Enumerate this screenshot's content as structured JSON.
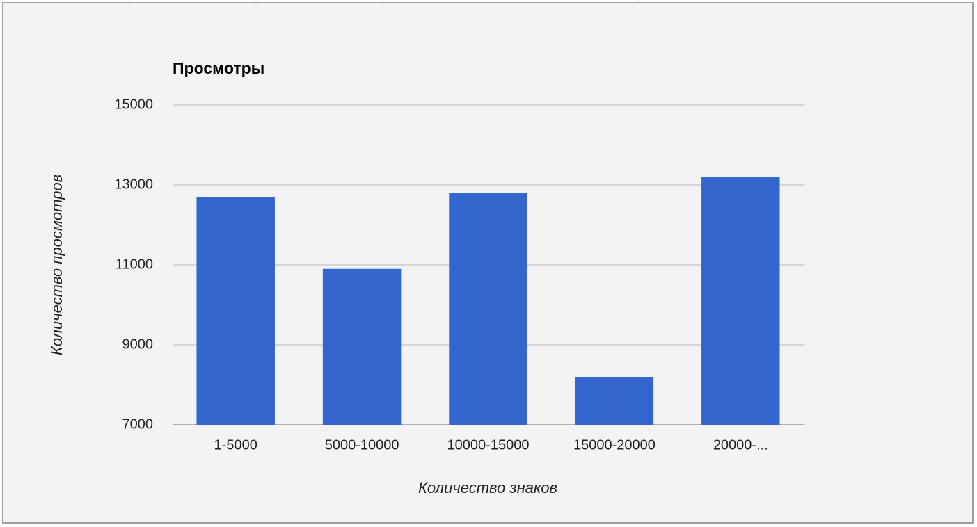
{
  "chart_data": {
    "type": "bar",
    "title": "Просмотры",
    "x_label": "Количество знаков",
    "y_label": "Количество просмотров",
    "categories": [
      "1-5000",
      "5000-10000",
      "10000-15000",
      "15000-20000",
      "20000-..."
    ],
    "values": [
      12700,
      10900,
      12800,
      8200,
      13200
    ],
    "color": "#3366cc",
    "ylim": [
      7000,
      15000
    ],
    "yticks": [
      7000,
      9000,
      11000,
      13000,
      15000
    ],
    "grid": true
  }
}
